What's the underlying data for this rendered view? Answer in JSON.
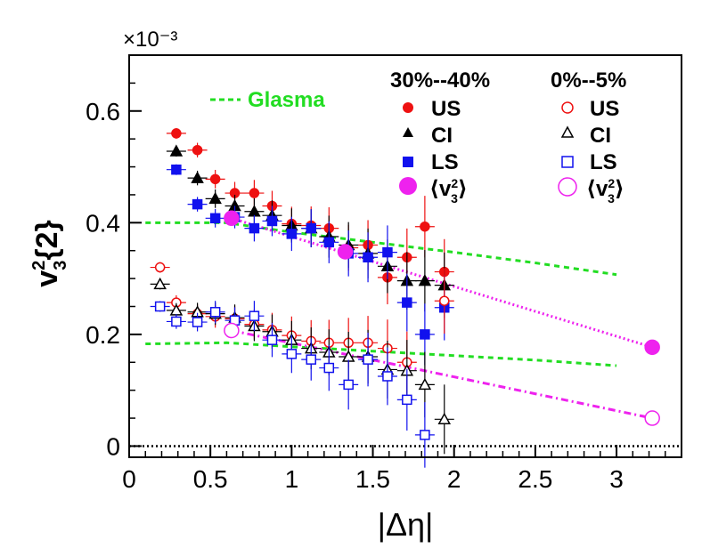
{
  "chart_data": {
    "type": "scatter",
    "title": "",
    "xlabel": "|Δη|",
    "ylabel": "v3²{2}",
    "y_multiplier": "×10⁻³",
    "xlim": [
      0,
      3.4
    ],
    "ylim": [
      -0.02,
      0.7
    ],
    "xticks": [
      0,
      0.5,
      1,
      1.5,
      2,
      2.5,
      3
    ],
    "xtick_labels": [
      "0",
      "0.5",
      "1",
      "1.5",
      "2",
      "2.5",
      "3"
    ],
    "yticks": [
      0,
      0.2,
      0.4,
      0.6
    ],
    "ytick_labels": [
      "0",
      "0.2",
      "0.4",
      "0.6"
    ],
    "legend": {
      "glasma_label": "Glasma",
      "glasma_color": "#22dd22",
      "headers": [
        "30%--40%",
        "0%--5%"
      ],
      "entries": [
        "US",
        "CI",
        "LS",
        "⟨v3²⟩"
      ]
    },
    "series": [
      {
        "name": "US",
        "centrality": "30%--40%",
        "marker": "filled-circle",
        "color": "#ee1111",
        "x": [
          0.29,
          0.42,
          0.53,
          0.65,
          0.77,
          0.88,
          1.0,
          1.12,
          1.23,
          1.35,
          1.47,
          1.59,
          1.71,
          1.82,
          1.94
        ],
        "y": [
          0.56,
          0.53,
          0.478,
          0.453,
          0.453,
          0.43,
          0.398,
          0.395,
          0.39,
          0.355,
          0.36,
          0.302,
          0.338,
          0.393,
          0.312
        ]
      },
      {
        "name": "CI",
        "centrality": "30%--40%",
        "marker": "filled-triangle",
        "color": "#000000",
        "x": [
          0.29,
          0.42,
          0.53,
          0.65,
          0.77,
          0.88,
          1.0,
          1.12,
          1.23,
          1.35,
          1.47,
          1.59,
          1.71,
          1.82,
          1.94
        ],
        "y": [
          0.528,
          0.48,
          0.443,
          0.43,
          0.42,
          0.413,
          0.395,
          0.39,
          0.375,
          0.36,
          0.345,
          0.322,
          0.296,
          0.296,
          0.288
        ]
      },
      {
        "name": "LS",
        "centrality": "30%--40%",
        "marker": "filled-square",
        "color": "#1111ee",
        "x": [
          0.29,
          0.42,
          0.53,
          0.65,
          0.77,
          0.88,
          1.0,
          1.12,
          1.23,
          1.35,
          1.47,
          1.59,
          1.71,
          1.82,
          1.94
        ],
        "y": [
          0.495,
          0.433,
          0.408,
          0.41,
          0.39,
          0.403,
          0.38,
          0.39,
          0.365,
          0.345,
          0.338,
          0.347,
          0.257,
          0.2,
          0.248
        ]
      },
      {
        "name": "⟨v3²⟩",
        "centrality": "30%--40%",
        "marker": "big-filled-circle",
        "color": "#ee22ee",
        "x": [
          0.63,
          1.33,
          3.22
        ],
        "y": [
          0.408,
          0.348,
          0.177
        ]
      },
      {
        "name": "US",
        "centrality": "0%--5%",
        "marker": "open-circle",
        "color": "#ee1111",
        "x": [
          0.19,
          0.29,
          0.42,
          0.53,
          0.65,
          0.77,
          0.88,
          1.0,
          1.12,
          1.23,
          1.35,
          1.47,
          1.59,
          1.71,
          1.94
        ],
        "y": [
          0.32,
          0.257,
          0.237,
          0.232,
          0.228,
          0.218,
          0.208,
          0.198,
          0.188,
          0.185,
          0.185,
          0.185,
          0.175,
          0.15,
          0.26
        ]
      },
      {
        "name": "CI",
        "centrality": "0%--5%",
        "marker": "open-triangle",
        "color": "#000000",
        "x": [
          0.19,
          0.29,
          0.42,
          0.53,
          0.65,
          0.77,
          0.88,
          1.0,
          1.12,
          1.23,
          1.35,
          1.47,
          1.59,
          1.71,
          1.82,
          1.94
        ],
        "y": [
          0.29,
          0.243,
          0.24,
          0.237,
          0.23,
          0.215,
          0.205,
          0.19,
          0.175,
          0.168,
          0.16,
          0.16,
          0.137,
          0.135,
          0.11,
          0.048
        ]
      },
      {
        "name": "LS",
        "centrality": "0%--5%",
        "marker": "open-square",
        "color": "#1111ee",
        "x": [
          0.19,
          0.29,
          0.42,
          0.53,
          0.65,
          0.77,
          0.88,
          1.0,
          1.12,
          1.23,
          1.35,
          1.47,
          1.59,
          1.71,
          1.82
        ],
        "y": [
          0.25,
          0.223,
          0.222,
          0.24,
          0.225,
          0.233,
          0.19,
          0.165,
          0.155,
          0.14,
          0.11,
          0.155,
          0.125,
          0.083,
          0.02
        ]
      },
      {
        "name": "⟨v3²⟩",
        "centrality": "0%--5%",
        "marker": "big-open-circle",
        "color": "#ee22ee",
        "x": [
          0.63,
          3.22
        ],
        "y": [
          0.207,
          0.05
        ]
      }
    ],
    "lines": [
      {
        "name": "Glasma",
        "centrality": "30%--40%",
        "style": "dashed",
        "color": "#22dd22",
        "x": [
          0.1,
          0.6,
          1.0,
          1.5,
          2.0,
          2.5,
          3.0
        ],
        "y": [
          0.4,
          0.4,
          0.383,
          0.365,
          0.347,
          0.328,
          0.307
        ]
      },
      {
        "name": "Glasma",
        "centrality": "0%--5%",
        "style": "dashed",
        "color": "#22dd22",
        "x": [
          0.1,
          0.6,
          1.0,
          1.5,
          2.0,
          2.5,
          3.0
        ],
        "y": [
          0.183,
          0.185,
          0.178,
          0.17,
          0.162,
          0.154,
          0.144
        ]
      },
      {
        "name": "trend",
        "centrality": "30%--40%",
        "style": "dotted",
        "color": "#ee22ee",
        "x": [
          0.63,
          3.22
        ],
        "y": [
          0.408,
          0.177
        ]
      },
      {
        "name": "trend",
        "centrality": "0%--5%",
        "style": "dashdot",
        "color": "#ee22ee",
        "x": [
          0.63,
          3.22
        ],
        "y": [
          0.207,
          0.05
        ]
      },
      {
        "name": "zero",
        "style": "dotted",
        "color": "#000000",
        "x": [
          0,
          3.4
        ],
        "y": [
          0,
          0
        ]
      }
    ]
  }
}
